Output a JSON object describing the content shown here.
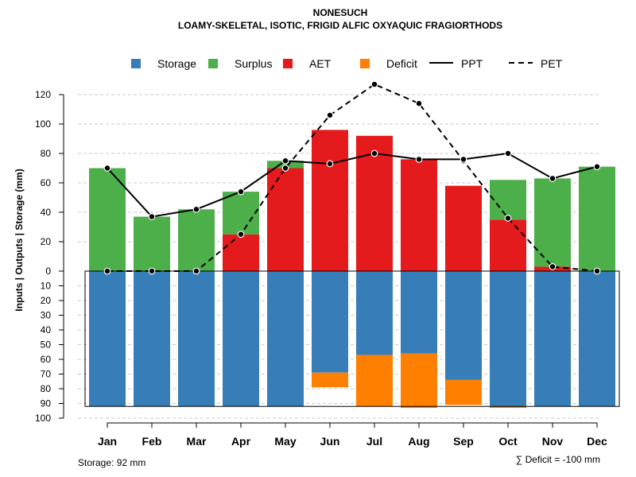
{
  "chart_data": {
    "type": "bar",
    "title": "NONESUCH",
    "subtitle": "LOAMY-SKELETAL, ISOTIC, FRIGID ALFIC OXYAQUIC FRAGIORTHODS",
    "ylabel": "Inputs | Outputs | Storage     (mm)",
    "categories": [
      "Jan",
      "Feb",
      "Mar",
      "Apr",
      "May",
      "Jun",
      "Jul",
      "Aug",
      "Sep",
      "Oct",
      "Nov",
      "Dec"
    ],
    "upper_ylim": [
      0,
      130
    ],
    "upper_ticks": [
      0,
      20,
      40,
      60,
      80,
      100,
      120
    ],
    "lower_ylim": [
      0,
      100
    ],
    "lower_ticks": [
      0,
      10,
      20,
      30,
      40,
      50,
      60,
      70,
      80,
      90,
      100
    ],
    "colors": {
      "storage": "#377EB8",
      "surplus": "#4DAF4A",
      "aet": "#E41A1C",
      "deficit": "#FF7F00",
      "ppt": "#000000",
      "pet": "#000000"
    },
    "legend": [
      {
        "key": "storage",
        "label": "Storage",
        "kind": "box"
      },
      {
        "key": "surplus",
        "label": "Surplus",
        "kind": "box"
      },
      {
        "key": "aet",
        "label": "AET",
        "kind": "box"
      },
      {
        "key": "deficit",
        "label": "Deficit",
        "kind": "box"
      },
      {
        "key": "ppt",
        "label": "PPT",
        "kind": "solid"
      },
      {
        "key": "pet",
        "label": "PET",
        "kind": "dashed"
      }
    ],
    "series": [
      {
        "name": "AET",
        "values": [
          0,
          0,
          0,
          25,
          70,
          96,
          92,
          76,
          58,
          35,
          3,
          0
        ]
      },
      {
        "name": "Surplus",
        "values": [
          70,
          37,
          42,
          29,
          5,
          0,
          0,
          0,
          0,
          27,
          60,
          71
        ]
      },
      {
        "name": "PPT",
        "values": [
          70,
          37,
          42,
          54,
          75,
          73,
          80,
          76,
          76,
          80,
          63,
          71
        ]
      },
      {
        "name": "PET",
        "values": [
          0,
          0,
          0,
          25,
          70,
          106,
          127,
          114,
          75,
          36,
          3,
          0
        ]
      },
      {
        "name": "Storage",
        "values": [
          92,
          92,
          92,
          92,
          92,
          69,
          57,
          56,
          74,
          92,
          92,
          92
        ]
      },
      {
        "name": "Deficit",
        "values": [
          0,
          0,
          0,
          0,
          0,
          10,
          35,
          37,
          17,
          1,
          0,
          0
        ]
      }
    ],
    "storage_capacity": 92,
    "footer_left": "Storage: 92 mm",
    "footer_right": "∑ Deficit = -100 mm"
  }
}
